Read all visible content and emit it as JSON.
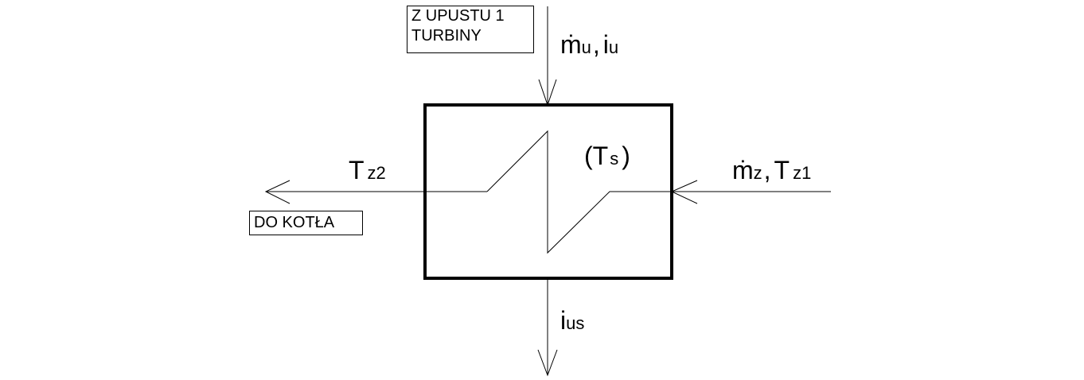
{
  "labels": {
    "source_line1": "Z UPUSTU 1",
    "source_line2": "TURBINY",
    "destination": "DO KOTŁA"
  },
  "symbols": {
    "steam_in": {
      "m_main": "ṁ",
      "m_sub": "u",
      "sep": ",",
      "i_main": "i",
      "i_sub": "u"
    },
    "water_out": {
      "main": "T",
      "sub": "z2"
    },
    "water_in": {
      "m_main": "ṁ",
      "m_sub": "z",
      "sep": ",",
      "t_main": "T",
      "t_sub": "z1"
    },
    "saturation": {
      "open": "(",
      "main": "T",
      "sub": "s",
      "close": ")"
    },
    "condensate_out": {
      "main": "i",
      "sub": "us"
    }
  },
  "colors": {
    "stroke": "#000000",
    "background": "#ffffff"
  }
}
